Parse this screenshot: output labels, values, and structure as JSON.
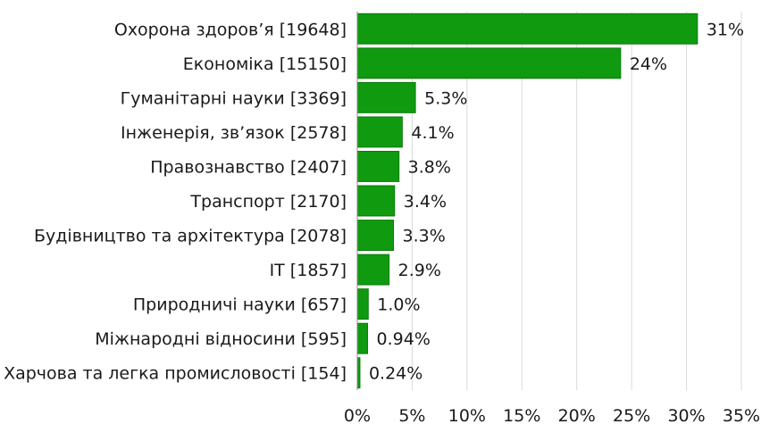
{
  "chart_data": {
    "type": "bar",
    "orientation": "horizontal",
    "categories": [
      "Охорона здоров’я [19648]",
      "Економіка [15150]",
      "Гуманітарні науки [3369]",
      "Інженерія, зв’язок [2578]",
      "Правознавство [2407]",
      "Транспорт [2170]",
      "Будівництво та архітектура [2078]",
      "IT [1857]",
      "Природничі науки [657]",
      "Міжнародні відносини [595]",
      "Харчова та легка промисловості [154]"
    ],
    "values": [
      31,
      24,
      5.3,
      4.1,
      3.8,
      3.4,
      3.3,
      2.9,
      1.0,
      0.94,
      0.24
    ],
    "value_labels": [
      "31%",
      "24%",
      "5.3%",
      "4.1%",
      "3.8%",
      "3.4%",
      "3.3%",
      "2.9%",
      "1.0%",
      "0.94%",
      "0.24%"
    ],
    "x_ticks": [
      "0%",
      "5%",
      "10%",
      "15%",
      "20%",
      "25%",
      "30%",
      "35%"
    ],
    "xlim": [
      0,
      35
    ],
    "grid": true,
    "legend": "none",
    "colors": {
      "bar": "#0f9a0f",
      "bar_border": "#0b7a0b"
    }
  }
}
